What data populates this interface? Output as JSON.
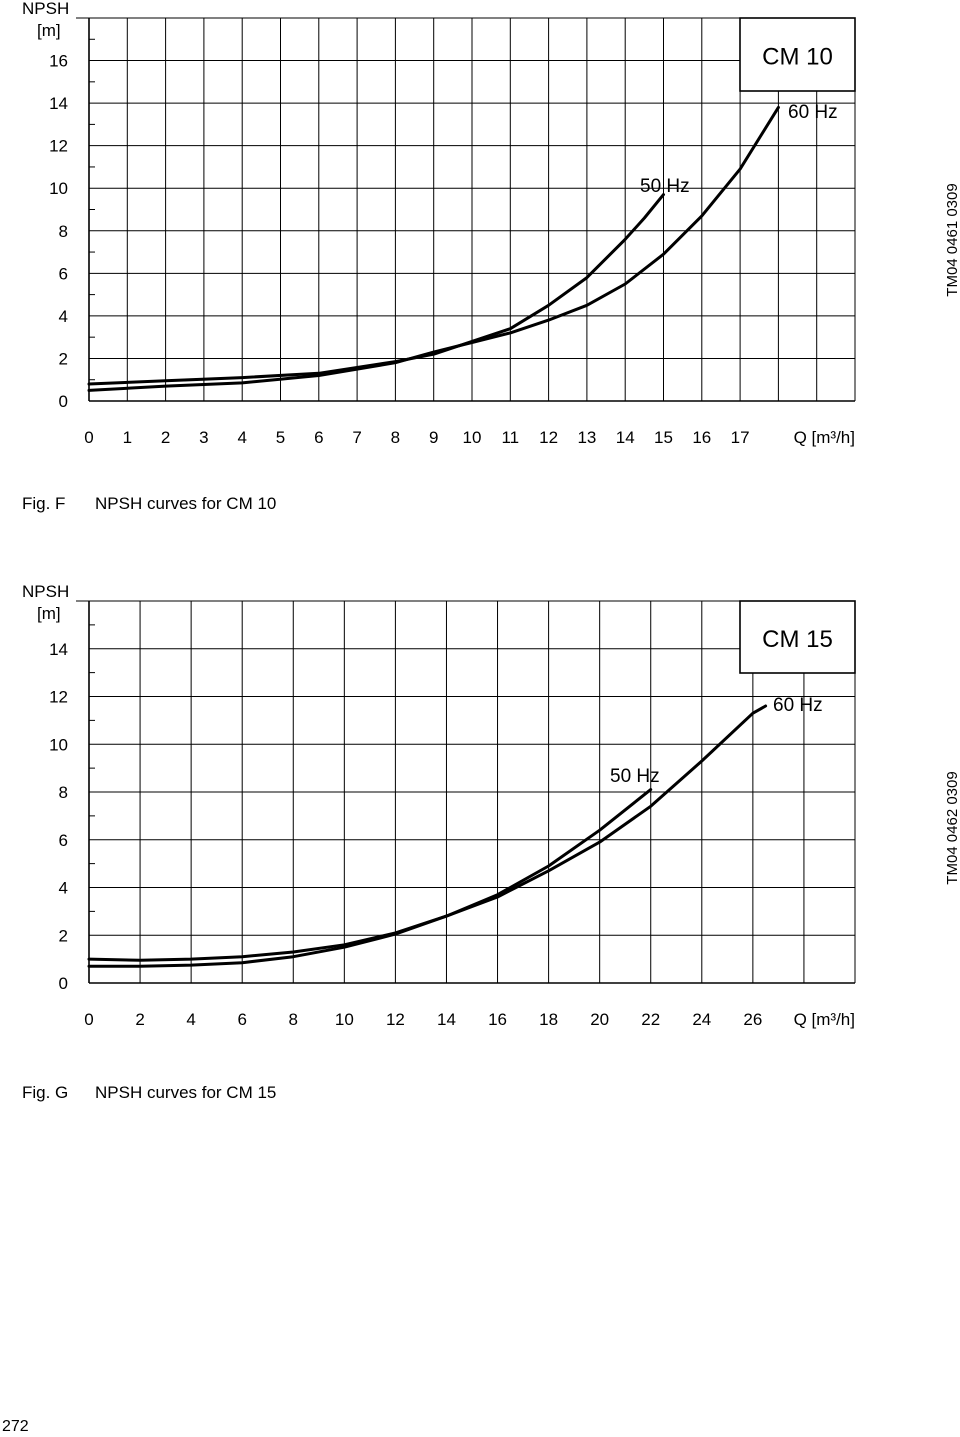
{
  "page": {
    "number": "272"
  },
  "figures": [
    {
      "fig_label": "Fig. F",
      "caption": "NPSH curves for CM 10",
      "doc_code": "TM04 0461 0309"
    },
    {
      "fig_label": "Fig. G",
      "caption": "NPSH curves for CM 15",
      "doc_code": "TM04 0462 0309"
    }
  ],
  "chart_data": [
    {
      "type": "line",
      "title": "CM 10",
      "ylabel_line1": "NPSH",
      "ylabel_line2": "[m]",
      "xlabel": "Q [m³/h]",
      "xlim": [
        0,
        20
      ],
      "ylim": [
        0,
        18
      ],
      "x_ticks": [
        0,
        1,
        2,
        3,
        4,
        5,
        6,
        7,
        8,
        9,
        10,
        11,
        12,
        13,
        14,
        15,
        16,
        17
      ],
      "y_ticks": [
        0,
        2,
        4,
        6,
        8,
        10,
        12,
        14,
        16
      ],
      "x_grid": [
        0,
        1,
        2,
        3,
        4,
        5,
        6,
        7,
        8,
        9,
        10,
        11,
        12,
        13,
        14,
        15,
        16,
        17,
        18,
        19,
        20
      ],
      "y_grid": [
        0,
        2,
        4,
        6,
        8,
        10,
        12,
        14,
        16,
        18
      ],
      "series": [
        {
          "name": "50 Hz",
          "label": "50 Hz",
          "x": [
            0,
            2,
            4,
            6,
            8,
            9,
            10,
            11,
            12,
            13,
            14,
            14.5,
            15
          ],
          "y": [
            0.8,
            0.95,
            1.1,
            1.3,
            1.85,
            2.2,
            2.8,
            3.4,
            4.5,
            5.8,
            7.6,
            8.6,
            9.7
          ]
        },
        {
          "name": "60 Hz",
          "label": "60 Hz",
          "x": [
            0,
            2,
            4,
            6,
            8,
            9,
            10,
            11,
            12,
            13,
            14,
            15,
            16,
            17,
            18
          ],
          "y": [
            0.5,
            0.7,
            0.85,
            1.2,
            1.8,
            2.3,
            2.75,
            3.2,
            3.8,
            4.5,
            5.5,
            6.9,
            8.7,
            10.9,
            13.8
          ]
        }
      ]
    },
    {
      "type": "line",
      "title": "CM 15",
      "ylabel_line1": "NPSH",
      "ylabel_line2": "[m]",
      "xlabel": "Q [m³/h]",
      "xlim": [
        0,
        30
      ],
      "ylim": [
        0,
        16
      ],
      "x_ticks": [
        0,
        2,
        4,
        6,
        8,
        10,
        12,
        14,
        16,
        18,
        20,
        22,
        24,
        26
      ],
      "y_ticks": [
        0,
        2,
        4,
        6,
        8,
        10,
        12,
        14
      ],
      "x_grid": [
        0,
        2,
        4,
        6,
        8,
        10,
        12,
        14,
        16,
        18,
        20,
        22,
        24,
        26,
        28,
        30
      ],
      "y_grid": [
        0,
        2,
        4,
        6,
        8,
        10,
        12,
        14,
        16
      ],
      "series": [
        {
          "name": "50 Hz",
          "label": "50 Hz",
          "x": [
            0,
            2,
            4,
            6,
            8,
            10,
            12,
            14,
            16,
            18,
            20,
            22
          ],
          "y": [
            1.0,
            0.95,
            1.0,
            1.1,
            1.3,
            1.6,
            2.1,
            2.8,
            3.7,
            4.9,
            6.4,
            8.1
          ]
        },
        {
          "name": "60 Hz",
          "label": "60 Hz",
          "x": [
            0,
            2,
            4,
            6,
            8,
            10,
            12,
            14,
            16,
            18,
            20,
            22,
            24,
            26,
            26.5
          ],
          "y": [
            0.7,
            0.7,
            0.75,
            0.85,
            1.1,
            1.5,
            2.05,
            2.8,
            3.6,
            4.7,
            5.9,
            7.4,
            9.3,
            11.3,
            11.6
          ]
        }
      ]
    }
  ]
}
